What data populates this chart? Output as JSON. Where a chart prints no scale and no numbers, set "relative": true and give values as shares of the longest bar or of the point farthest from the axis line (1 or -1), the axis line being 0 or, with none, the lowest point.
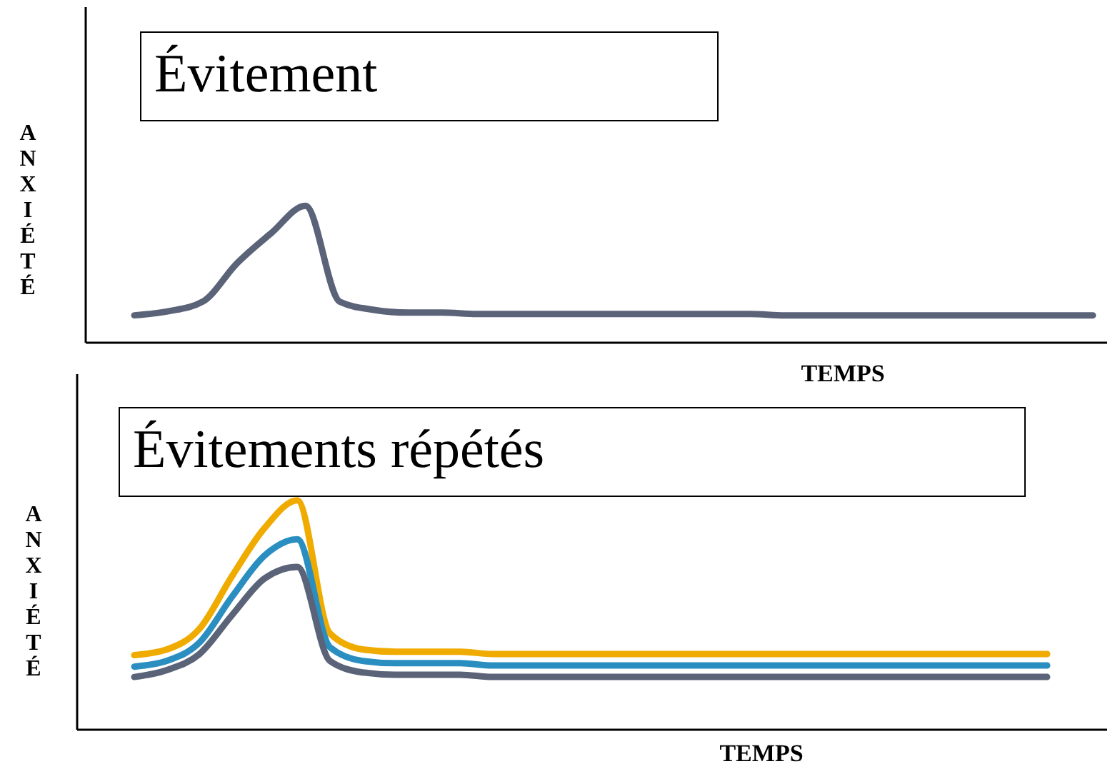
{
  "chart_data": [
    {
      "type": "line",
      "title": "Évitement",
      "xlabel": "TEMPS",
      "ylabel": "ANXIÉTÉ",
      "relative": true,
      "legend": false,
      "grid": false,
      "marker": "none",
      "line_style": "solid",
      "categories": [
        null,
        null,
        null,
        null,
        null,
        null,
        null,
        null,
        null,
        null,
        null,
        null,
        null,
        null,
        null,
        null,
        null,
        null,
        null,
        null,
        null,
        null,
        null,
        null,
        null,
        null,
        null,
        null,
        null
      ],
      "series": [
        {
          "color": "#5a6378",
          "values": [
            0.2,
            0.23,
            0.3,
            0.58,
            0.8,
            1.0,
            0.3,
            0.24,
            0.22,
            0.22,
            0.21,
            0.21,
            0.21,
            0.21,
            0.21,
            0.21,
            0.21,
            0.21,
            0.21,
            0.2,
            0.2,
            0.2,
            0.2,
            0.2,
            0.2,
            0.2,
            0.2,
            0.2,
            0.2
          ]
        }
      ]
    },
    {
      "type": "line",
      "title": "Évitements répétés",
      "xlabel": "TEMPS",
      "ylabel": "ANXIÉTÉ",
      "relative": true,
      "legend": false,
      "grid": false,
      "marker": "none",
      "line_style": "solid",
      "categories": [
        null,
        null,
        null,
        null,
        null,
        null,
        null,
        null,
        null,
        null,
        null,
        null,
        null,
        null,
        null,
        null,
        null,
        null,
        null,
        null,
        null,
        null,
        null,
        null,
        null,
        null,
        null,
        null,
        null
      ],
      "series": [
        {
          "color": "#f0ab00",
          "values": [
            0.325,
            0.35,
            0.44,
            0.67,
            0.88,
            1.0,
            0.42,
            0.35,
            0.34,
            0.34,
            0.34,
            0.33,
            0.33,
            0.33,
            0.33,
            0.33,
            0.33,
            0.33,
            0.33,
            0.33,
            0.33,
            0.33,
            0.33,
            0.33,
            0.33,
            0.33,
            0.33,
            0.33,
            0.33
          ]
        },
        {
          "color": "#2a8fc0",
          "values": [
            0.275,
            0.3,
            0.38,
            0.58,
            0.76,
            0.83,
            0.36,
            0.3,
            0.29,
            0.29,
            0.29,
            0.28,
            0.28,
            0.28,
            0.28,
            0.28,
            0.28,
            0.28,
            0.28,
            0.28,
            0.28,
            0.28,
            0.28,
            0.28,
            0.28,
            0.28,
            0.28,
            0.28,
            0.28
          ]
        },
        {
          "color": "#5a6378",
          "values": [
            0.23,
            0.26,
            0.33,
            0.5,
            0.66,
            0.71,
            0.3,
            0.25,
            0.24,
            0.24,
            0.24,
            0.23,
            0.23,
            0.23,
            0.23,
            0.23,
            0.23,
            0.23,
            0.23,
            0.23,
            0.23,
            0.23,
            0.23,
            0.23,
            0.23,
            0.23,
            0.23,
            0.23,
            0.23
          ]
        }
      ]
    }
  ]
}
